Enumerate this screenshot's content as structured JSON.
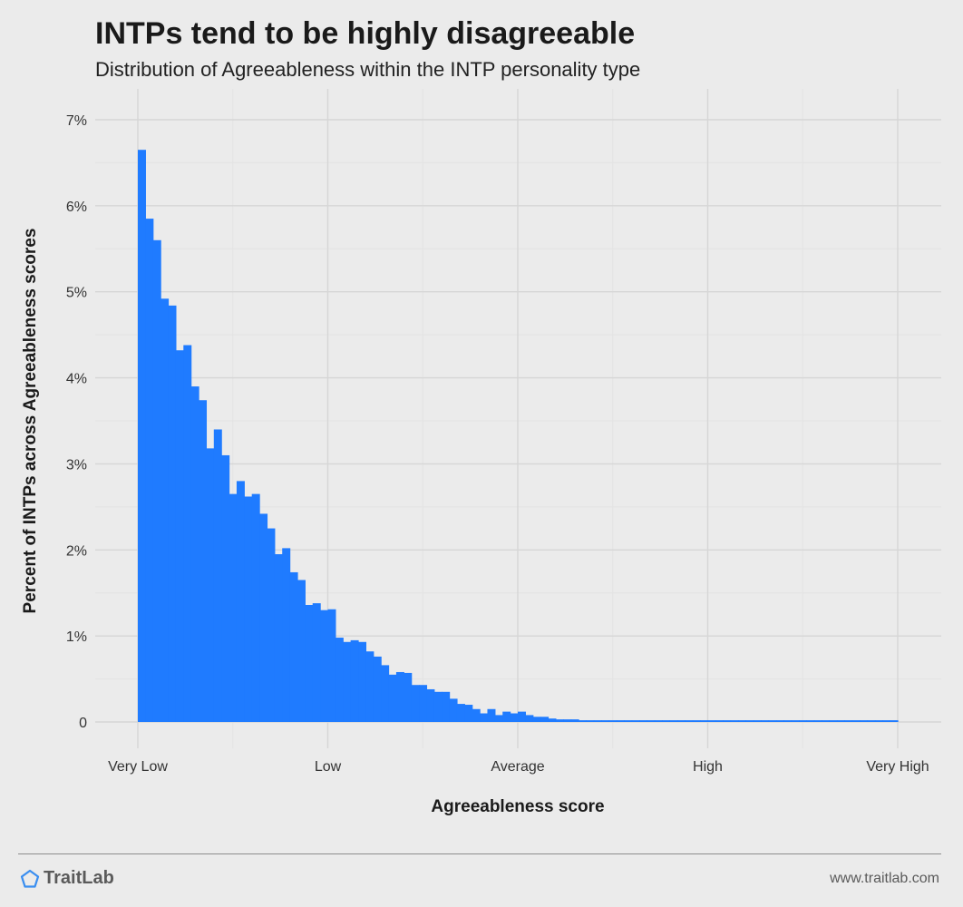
{
  "header": {
    "title": "INTPs tend to be highly disagreeable",
    "subtitle": "Distribution of Agreeableness within the INTP personality type"
  },
  "footer": {
    "brand": "TraitLab",
    "website": "www.traitlab.com",
    "brand_icon": "pentagon-logo-icon"
  },
  "colors": {
    "background": "#ebebeb",
    "bar": "#1f7bff",
    "grid_major": "#d6d6d6",
    "grid_minor": "#e3e3e3",
    "logo": "#3a8ef0"
  },
  "chart_data": {
    "type": "bar",
    "title": "INTPs tend to be highly disagreeable",
    "subtitle": "Distribution of Agreeableness within the INTP personality type",
    "xlabel": "Agreeableness score",
    "ylabel": "Percent of INTPs across Agreeableness scores",
    "x_ticks": [
      "Very Low",
      "Low",
      "Average",
      "High",
      "Very High"
    ],
    "y_ticks": [
      "0",
      "1%",
      "2%",
      "3%",
      "4%",
      "5%",
      "6%",
      "7%"
    ],
    "xlim": [
      0,
      100
    ],
    "ylim": [
      0,
      7
    ],
    "grid": true,
    "bin_width": 1,
    "series": [
      {
        "values": [
          6.65,
          5.85,
          5.6,
          4.92,
          4.84,
          4.32,
          4.38,
          3.9,
          3.74,
          3.18,
          3.4,
          3.1,
          2.65,
          2.8,
          2.62,
          2.65,
          2.42,
          2.25,
          1.95,
          2.02,
          1.74,
          1.65,
          1.36,
          1.38,
          1.3,
          1.31,
          0.98,
          0.93,
          0.95,
          0.93,
          0.82,
          0.76,
          0.66,
          0.55,
          0.58,
          0.57,
          0.43,
          0.43,
          0.38,
          0.35,
          0.35,
          0.27,
          0.21,
          0.2,
          0.15,
          0.1,
          0.15,
          0.08,
          0.12,
          0.1,
          0.12,
          0.08,
          0.06,
          0.06,
          0.04,
          0.03,
          0.03,
          0.03,
          0.02,
          0.02,
          0.02,
          0.01,
          0.02,
          0.02,
          0.01,
          0.01,
          0.01,
          0.005,
          0.005,
          0.005,
          0.005,
          0.005,
          0.005,
          0.005,
          0.005,
          0.005,
          0.005,
          0.01,
          0.005,
          0.005,
          0.005,
          0.005,
          0.005,
          0.005,
          0.005,
          0.005,
          0.005,
          0.005,
          0.005,
          0.005,
          0.005,
          0.005,
          0.005,
          0.005,
          0.005,
          0.005,
          0.005,
          0.005,
          0.005,
          0.005
        ]
      }
    ]
  }
}
